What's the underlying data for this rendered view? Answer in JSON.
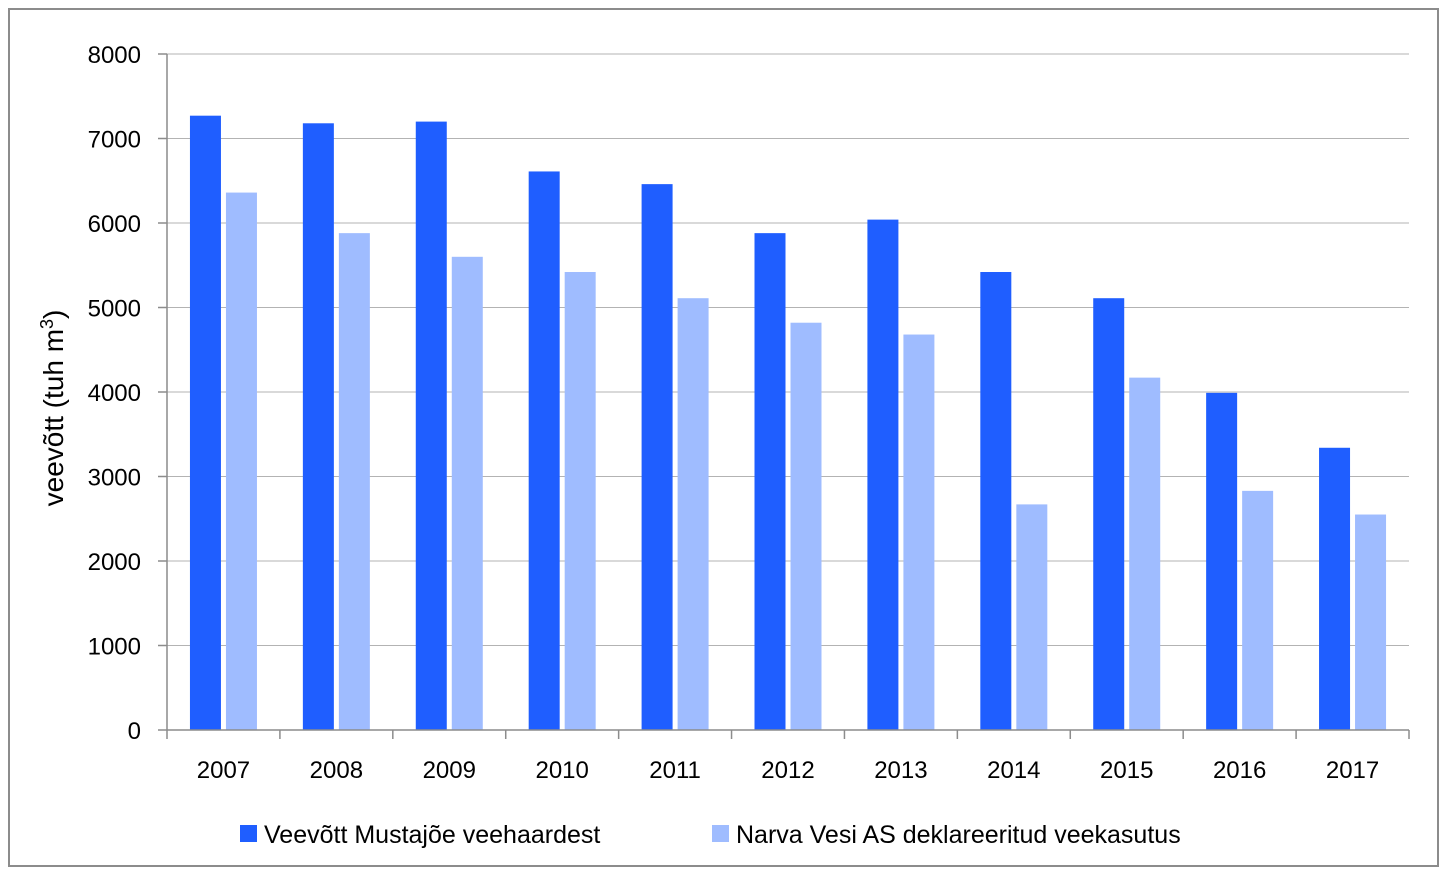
{
  "chart_data": {
    "type": "bar",
    "title": "",
    "xlabel": "",
    "ylabel": "veevõtt (tuh m",
    "ylabel_sup": "3",
    "ylabel_close": ")",
    "ylim": [
      0,
      8000
    ],
    "yticks": [
      "0",
      "1000",
      "2000",
      "3000",
      "4000",
      "5000",
      "6000",
      "7000",
      "8000"
    ],
    "grid": true,
    "legend_position": "bottom",
    "categories": [
      "2007",
      "2008",
      "2009",
      "2010",
      "2011",
      "2012",
      "2013",
      "2014",
      "2015",
      "2016",
      "2017"
    ],
    "series": [
      {
        "name": "Veevõtt Mustajõe veehaardest",
        "color": "#1f5eff",
        "values": [
          7270,
          7180,
          7200,
          6610,
          6460,
          5880,
          6040,
          5420,
          5110,
          3990,
          3340
        ]
      },
      {
        "name": "Narva Vesi AS deklareeritud veekasutus",
        "color": "#9fbcff",
        "values": [
          6360,
          5880,
          5600,
          5420,
          5110,
          4820,
          4680,
          2670,
          4170,
          2830,
          2550
        ]
      }
    ]
  }
}
